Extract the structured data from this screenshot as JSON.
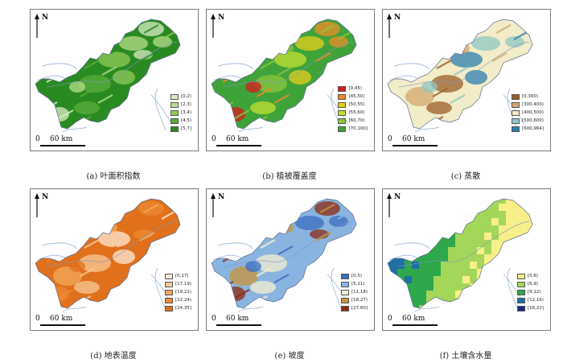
{
  "north_label": "N",
  "scale": {
    "zero": "0",
    "distance": "60 km"
  },
  "panels": [
    {
      "caption": "(a) 叶面积指数",
      "legend": [
        {
          "label": "[0,2)",
          "color": "#d9ecc4"
        },
        {
          "label": "[2,3)",
          "color": "#b6dd8a"
        },
        {
          "label": "[3,4)",
          "color": "#8fca5a"
        },
        {
          "label": "[4,5)",
          "color": "#5aad3c"
        },
        {
          "label": "[5,7]",
          "color": "#2a8a22"
        }
      ]
    },
    {
      "caption": "(b) 植被覆盖度",
      "legend": [
        {
          "label": "[0,45)",
          "color": "#d7191c"
        },
        {
          "label": "[45,50)",
          "color": "#f08c26"
        },
        {
          "label": "[50,55)",
          "color": "#e6cf1e"
        },
        {
          "label": "[55,60)",
          "color": "#c4e034"
        },
        {
          "label": "[60,70)",
          "color": "#8cc63e"
        },
        {
          "label": "[70,100]",
          "color": "#3fa33a"
        }
      ]
    },
    {
      "caption": "(c) 蒸散",
      "legend": [
        {
          "label": "[0,300)",
          "color": "#9b5f2a"
        },
        {
          "label": "[300,400)",
          "color": "#d2a86e"
        },
        {
          "label": "[400,500)",
          "color": "#f2ecc8"
        },
        {
          "label": "[500,600)",
          "color": "#8fc7c4"
        },
        {
          "label": "[600,964]",
          "color": "#2d7fb0"
        }
      ]
    },
    {
      "caption": "(d) 地表温度",
      "legend": [
        {
          "label": "[0,17)",
          "color": "#fde9d3"
        },
        {
          "label": "[17,19)",
          "color": "#f9c896"
        },
        {
          "label": "[19,22)",
          "color": "#f4a95c"
        },
        {
          "label": "[22,24)",
          "color": "#ee8a32"
        },
        {
          "label": "[24,35]",
          "color": "#e0701c"
        }
      ]
    },
    {
      "caption": "(e) 坡度",
      "legend": [
        {
          "label": "[0,5)",
          "color": "#3a6fc2"
        },
        {
          "label": "[5,11)",
          "color": "#8ab4e0"
        },
        {
          "label": "[11,18)",
          "color": "#f4efcf"
        },
        {
          "label": "[18,27)",
          "color": "#c8943c"
        },
        {
          "label": "[27,60]",
          "color": "#8b2a12"
        }
      ]
    },
    {
      "caption": "(f) 土壤含水量",
      "legend": [
        {
          "label": "[0,6)",
          "color": "#f7f08a"
        },
        {
          "label": "[6,9)",
          "color": "#a4d65a"
        },
        {
          "label": "[9,12)",
          "color": "#2ea84a"
        },
        {
          "label": "[12,16)",
          "color": "#1f6fa6"
        },
        {
          "label": "[16,22]",
          "color": "#1b2a7a"
        }
      ]
    }
  ]
}
